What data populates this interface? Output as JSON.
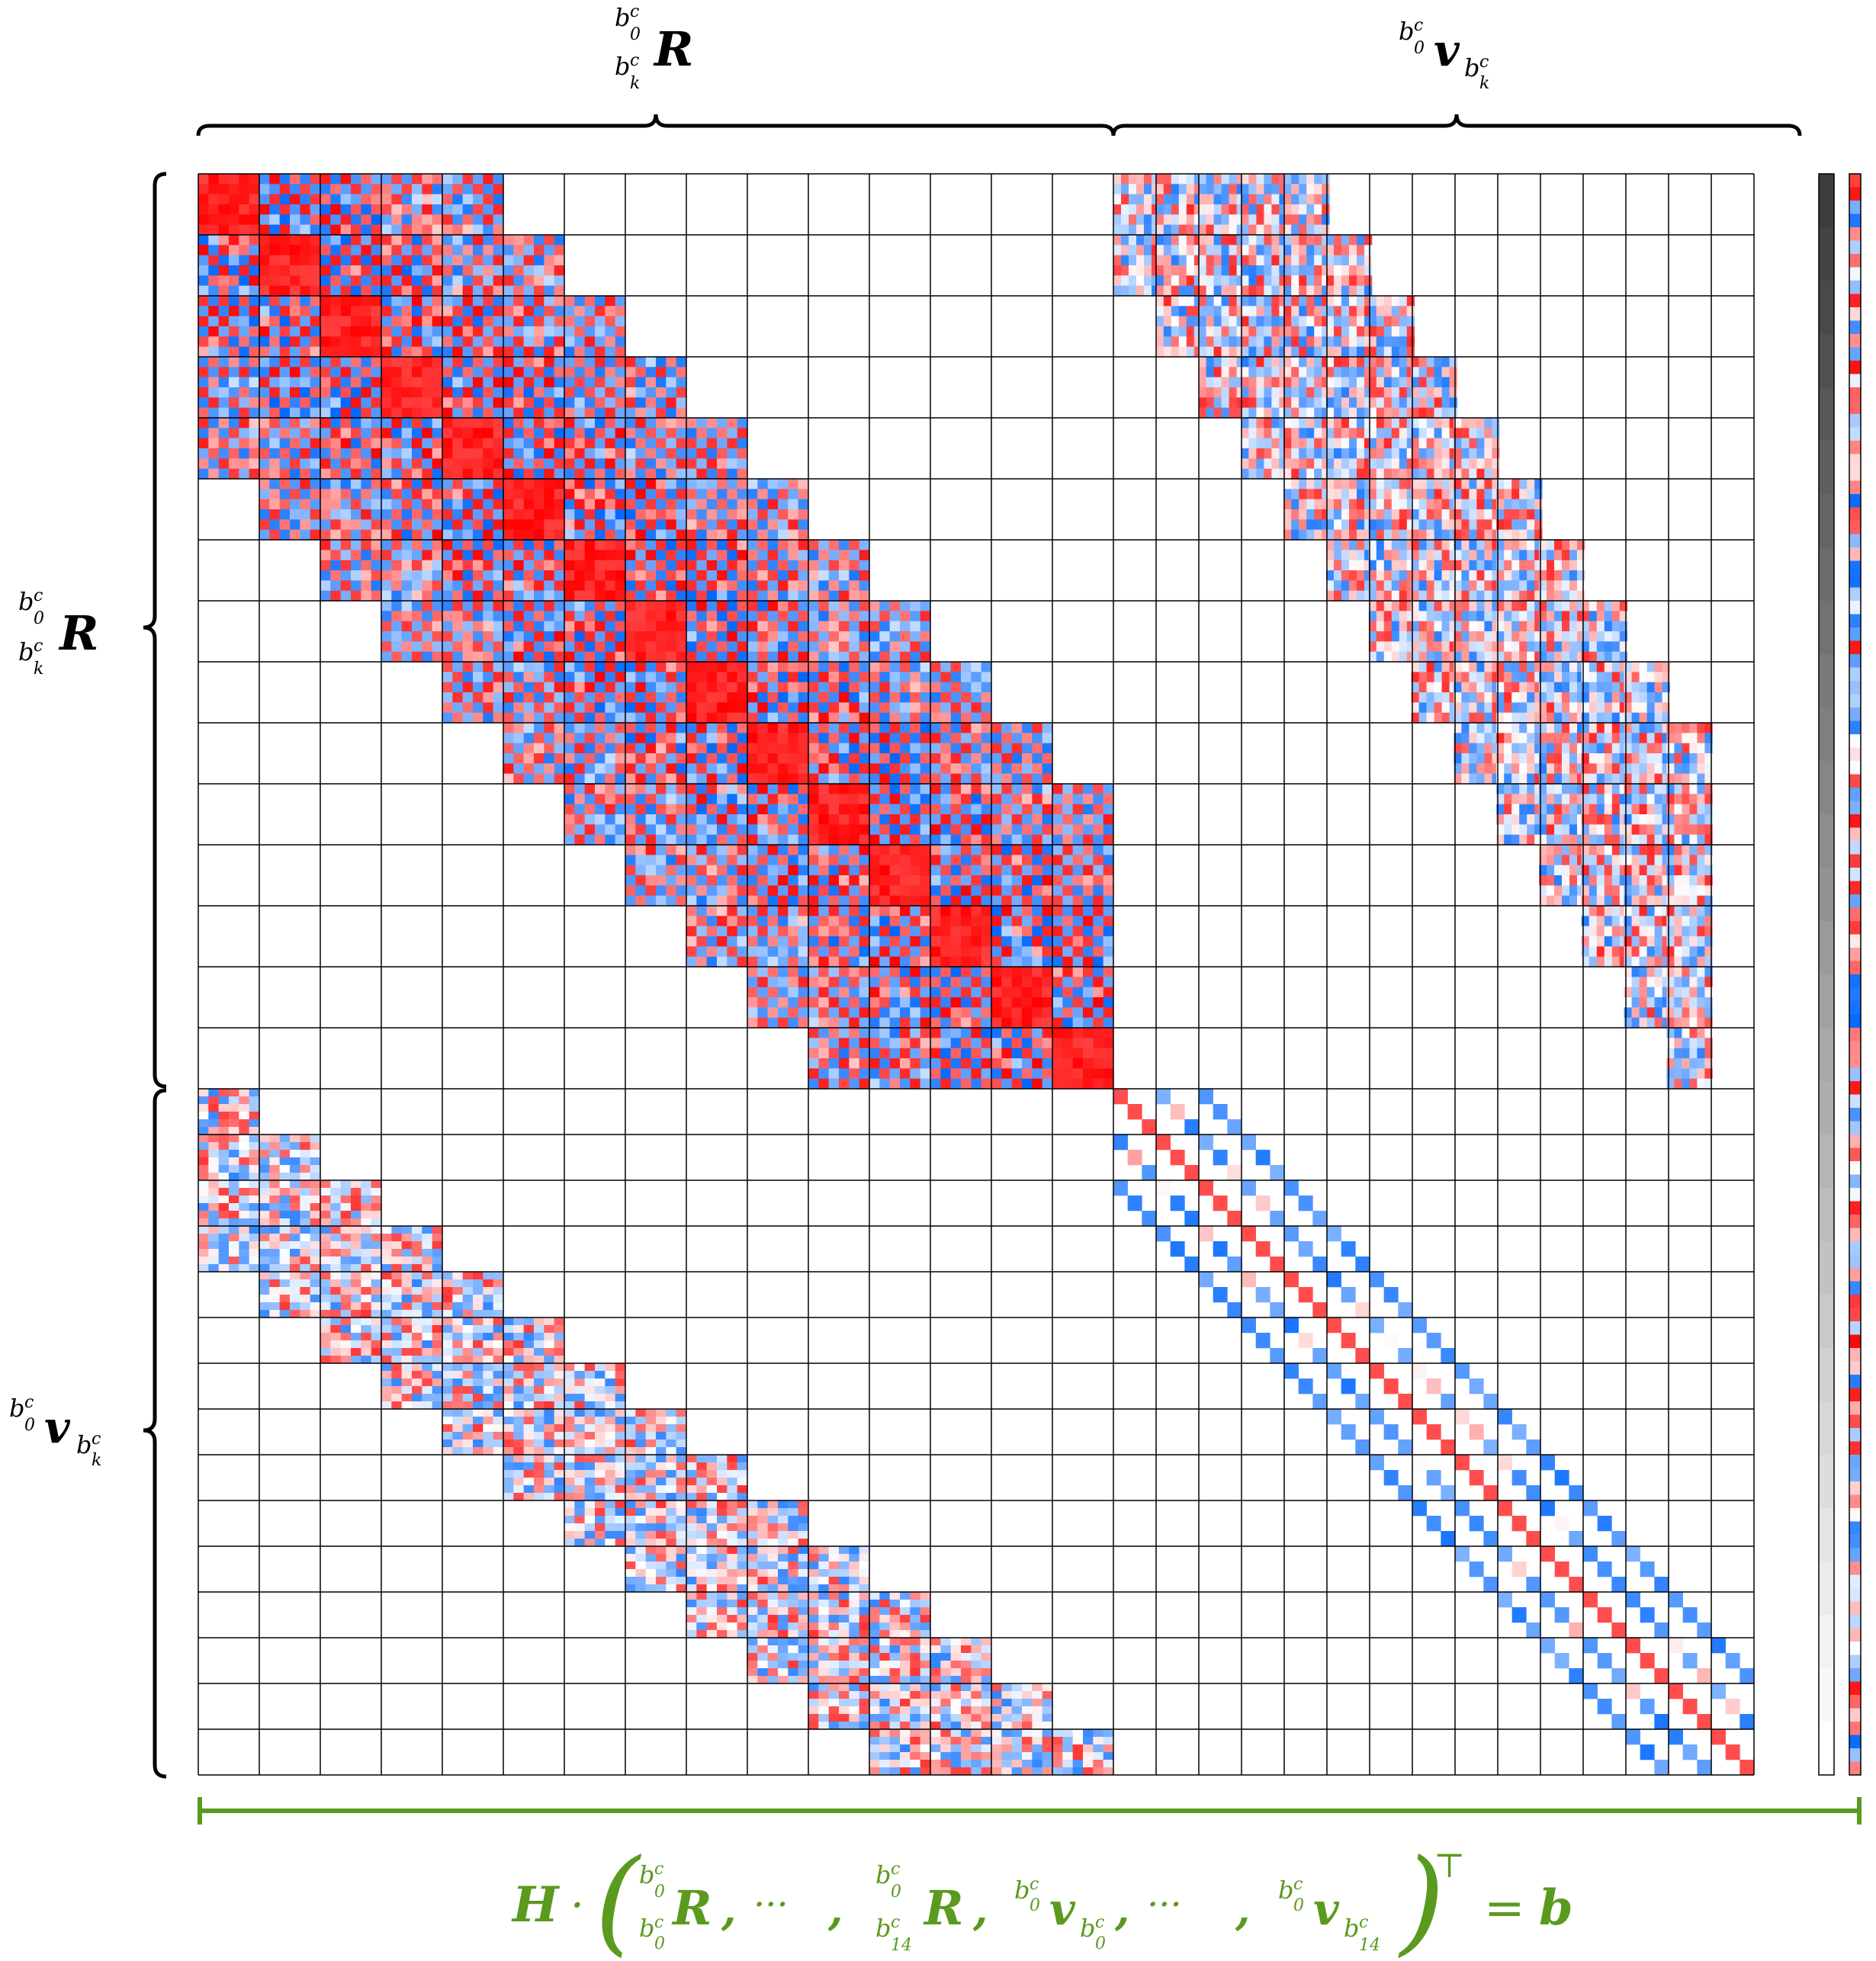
{
  "matrix": {
    "block_cols_R": 15,
    "block_cols_v": 15,
    "rows_R": 15,
    "rows_v": 15,
    "colors": {
      "positive": "#ff0000",
      "negative": "#0066ff",
      "grid": "#000000",
      "background": "#ffffff"
    }
  },
  "labels": {
    "top_R": "R",
    "top_v": "v",
    "left_R": "R",
    "left_v": "v",
    "sup_c": "c",
    "sub_0": "0",
    "sub_k": "k",
    "sub_14": "14",
    "b": "b"
  },
  "equation": {
    "H": "H",
    "dot": "·",
    "ellipsis": "···",
    "comma": ",",
    "transpose": "⊤",
    "equals": "=",
    "rhs": "b",
    "color": "#5a9a1e"
  }
}
